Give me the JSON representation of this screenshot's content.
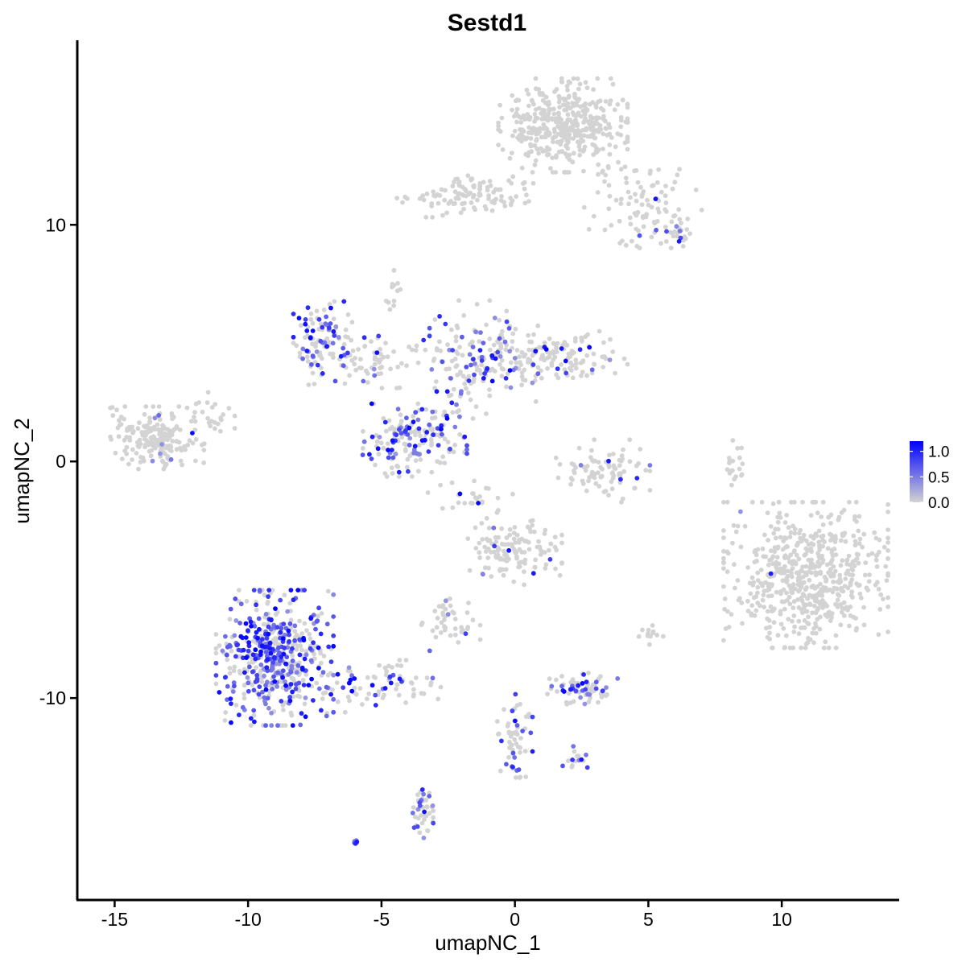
{
  "chart_data": {
    "type": "scatter",
    "title": "Sestd1",
    "xlabel": "umapNC_1",
    "ylabel": "umapNC_2",
    "xlim": [
      -16.4,
      14.4
    ],
    "ylim": [
      -18.5,
      17.8
    ],
    "xticks": [
      -15,
      -10,
      -5,
      0,
      5,
      10
    ],
    "xtick_labels": [
      "-15",
      "-10",
      "-5",
      "0",
      "5",
      "10"
    ],
    "yticks": [
      -10,
      0,
      10
    ],
    "ytick_labels": [
      "-10",
      "0",
      "10"
    ],
    "grid": false,
    "legend": {
      "type": "colorbar",
      "placement": "right",
      "min": 0.0,
      "max": 1.2,
      "ticks": [
        1.0,
        0.5,
        0.0
      ],
      "tick_labels": [
        "1.0",
        "0.5",
        "0.0"
      ]
    },
    "colors": {
      "low": "#d3d3d3",
      "high": "#0000ff"
    },
    "clusters": [
      {
        "name": "c1",
        "cx": 1.8,
        "cy": 14.2,
        "sx": 1.1,
        "sy": 0.9,
        "n": 420,
        "frac_expr": 0.0
      },
      {
        "name": "c2",
        "cx": -1.8,
        "cy": 11.2,
        "sx": 1.3,
        "sy": 0.4,
        "n": 110,
        "frac_expr": 0.0
      },
      {
        "name": "c3",
        "cx": 4.8,
        "cy": 11.0,
        "sx": 1.0,
        "sy": 0.9,
        "n": 90,
        "frac_expr": 0.03
      },
      {
        "name": "c4",
        "cx": 6.0,
        "cy": 9.6,
        "sx": 0.4,
        "sy": 0.3,
        "n": 30,
        "frac_expr": 0.1
      },
      {
        "name": "c5",
        "cx": -13.4,
        "cy": 1.0,
        "sx": 0.8,
        "sy": 0.6,
        "n": 190,
        "frac_expr": 0.04
      },
      {
        "name": "c6",
        "cx": -11.6,
        "cy": 1.8,
        "sx": 0.5,
        "sy": 0.6,
        "n": 30,
        "frac_expr": 0.0
      },
      {
        "name": "c7",
        "cx": -7.2,
        "cy": 5.0,
        "sx": 0.5,
        "sy": 0.8,
        "n": 95,
        "frac_expr": 0.45
      },
      {
        "name": "c8",
        "cx": -5.2,
        "cy": 4.2,
        "sx": 1.3,
        "sy": 0.5,
        "n": 80,
        "frac_expr": 0.12
      },
      {
        "name": "c9",
        "cx": -4.0,
        "cy": 0.9,
        "sx": 1.0,
        "sy": 0.7,
        "n": 170,
        "frac_expr": 0.45
      },
      {
        "name": "c10",
        "cx": -1.0,
        "cy": 4.6,
        "sx": 1.0,
        "sy": 1.0,
        "n": 140,
        "frac_expr": 0.3
      },
      {
        "name": "c11",
        "cx": 1.8,
        "cy": 4.4,
        "sx": 1.1,
        "sy": 0.5,
        "n": 120,
        "frac_expr": 0.12
      },
      {
        "name": "c12",
        "cx": -2.0,
        "cy": 3.3,
        "sx": 0.5,
        "sy": 0.8,
        "n": 40,
        "frac_expr": 0.1
      },
      {
        "name": "c13",
        "cx": 3.3,
        "cy": -0.4,
        "sx": 0.8,
        "sy": 0.6,
        "n": 90,
        "frac_expr": 0.06
      },
      {
        "name": "c14",
        "cx": 10.9,
        "cy": -4.8,
        "sx": 1.4,
        "sy": 1.4,
        "n": 600,
        "frac_expr": 0.004
      },
      {
        "name": "c15",
        "cx": 0.0,
        "cy": -3.7,
        "sx": 0.8,
        "sy": 0.7,
        "n": 130,
        "frac_expr": 0.05
      },
      {
        "name": "c16",
        "cx": -9.0,
        "cy": -8.3,
        "sx": 1.0,
        "sy": 1.3,
        "n": 520,
        "frac_expr": 0.5
      },
      {
        "name": "c17",
        "cx": -5.2,
        "cy": -9.5,
        "sx": 1.1,
        "sy": 0.5,
        "n": 80,
        "frac_expr": 0.35
      },
      {
        "name": "c18",
        "cx": -2.4,
        "cy": -6.9,
        "sx": 0.5,
        "sy": 0.5,
        "n": 45,
        "frac_expr": 0.05
      },
      {
        "name": "c19",
        "cx": 0.0,
        "cy": -11.6,
        "sx": 0.3,
        "sy": 0.8,
        "n": 60,
        "frac_expr": 0.2
      },
      {
        "name": "c20",
        "cx": 2.5,
        "cy": -9.6,
        "sx": 0.7,
        "sy": 0.3,
        "n": 75,
        "frac_expr": 0.35
      },
      {
        "name": "c21",
        "cx": 2.3,
        "cy": -12.6,
        "sx": 0.3,
        "sy": 0.3,
        "n": 15,
        "frac_expr": 0.2
      },
      {
        "name": "c22",
        "cx": -3.5,
        "cy": -14.8,
        "sx": 0.2,
        "sy": 0.6,
        "n": 45,
        "frac_expr": 0.4
      },
      {
        "name": "c23",
        "cx": 8.2,
        "cy": -0.2,
        "sx": 0.2,
        "sy": 0.5,
        "n": 20,
        "frac_expr": 0.0
      },
      {
        "name": "c24",
        "cx": 5.0,
        "cy": -7.3,
        "sx": 0.3,
        "sy": 0.2,
        "n": 12,
        "frac_expr": 0.0
      },
      {
        "name": "c25",
        "cx": -4.6,
        "cy": 7.2,
        "sx": 0.2,
        "sy": 0.5,
        "n": 12,
        "frac_expr": 0.0
      },
      {
        "name": "c26",
        "cx": -6.0,
        "cy": -16.1,
        "sx": 0.05,
        "sy": 0.05,
        "n": 6,
        "frac_expr": 1.0
      },
      {
        "name": "c27",
        "cx": -1.5,
        "cy": -1.4,
        "sx": 0.8,
        "sy": 0.3,
        "n": 25,
        "frac_expr": 0.2
      }
    ]
  }
}
